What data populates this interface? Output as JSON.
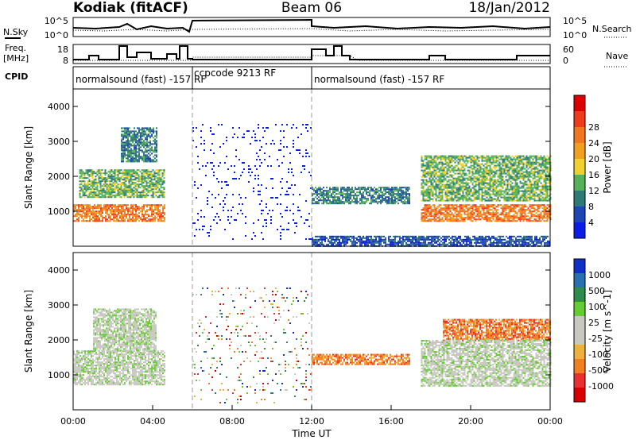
{
  "header": {
    "title": "Kodiak (fitACF)",
    "beam": "Beam 06",
    "date": "18/Jan/2012"
  },
  "panel_labels": {
    "nsky": "N.Sky",
    "freq_line1": "Freq.",
    "freq_line2": "[MHz]",
    "cpid": "CPID",
    "nsearch": "N.Search",
    "nave": "Nave"
  },
  "noise_axis": {
    "left_top": "10^5",
    "left_bottom": "10^0",
    "right_top": "10^5",
    "right_bottom": "10^0"
  },
  "freq_axis": {
    "left_top": "18",
    "left_bottom": "8",
    "right_top": "60",
    "right_bottom": "0"
  },
  "cpid_segments": [
    {
      "label": "normalsound (fast) -157 RF",
      "start": 0,
      "end": 6
    },
    {
      "label": "ccpcode 9213 RF",
      "start": 6,
      "end": 12
    },
    {
      "label": "normalsound (fast) -157 RF",
      "start": 12,
      "end": 24
    }
  ],
  "colors": {
    "power_scale": [
      "#0a1ee6",
      "#1e46b4",
      "#2e7a74",
      "#55b25a",
      "#f0d02e",
      "#f0a020",
      "#f07820",
      "#f03c1e",
      "#dc0000"
    ],
    "velocity_scale": [
      "#1030c8",
      "#2a70b0",
      "#2e8c4e",
      "#66cc33",
      "#c8c8c0",
      "#c8c8c0",
      "#f0b040",
      "#f08020",
      "#e83030",
      "#d80000"
    ]
  },
  "chart_data": [
    {
      "type": "heatmap",
      "name": "power",
      "xlabel": "",
      "ylabel": "Slant Range [km]",
      "xlim": [
        0,
        24
      ],
      "ylim": [
        0,
        4500
      ],
      "y_ticks": [
        "1000",
        "2000",
        "3000",
        "4000"
      ],
      "colorbar_label": "Power [dB]",
      "colorbar_ticks": [
        "4",
        "8",
        "12",
        "16",
        "20",
        "24",
        "28"
      ],
      "bands": [
        {
          "x": [
            0,
            4.6
          ],
          "y": [
            700,
            1200
          ],
          "level": 6
        },
        {
          "x": [
            0.3,
            4.6
          ],
          "y": [
            1400,
            2200
          ],
          "level": 3
        },
        {
          "x": [
            2.4,
            4.2
          ],
          "y": [
            2400,
            3400
          ],
          "level": 2
        },
        {
          "x": [
            6,
            12
          ],
          "y": [
            200,
            3500
          ],
          "level": 0
        },
        {
          "x": [
            12,
            16.9
          ],
          "y": [
            1200,
            1700
          ],
          "level": 2
        },
        {
          "x": [
            17.5,
            24
          ],
          "y": [
            700,
            1200
          ],
          "level": 6
        },
        {
          "x": [
            17.5,
            24
          ],
          "y": [
            1300,
            2600
          ],
          "level": 3
        },
        {
          "x": [
            12,
            24
          ],
          "y": [
            0,
            300
          ],
          "level": 1
        }
      ]
    },
    {
      "type": "heatmap",
      "name": "velocity",
      "xlabel": "Time UT",
      "ylabel": "Slant Range [km]",
      "xlim": [
        0,
        24
      ],
      "ylim": [
        0,
        4500
      ],
      "x_ticks": [
        "00:00",
        "04:00",
        "08:00",
        "12:00",
        "16:00",
        "20:00",
        "00:00"
      ],
      "y_ticks": [
        "1000",
        "2000",
        "3000",
        "4000"
      ],
      "colorbar_label": "Velocity [m s^-1]",
      "colorbar_ticks": [
        "1000",
        "500",
        "100",
        "25",
        "-25",
        "-100",
        "-500",
        "-1000"
      ],
      "bands": [
        {
          "x": [
            0,
            4.6
          ],
          "y": [
            700,
            1700
          ],
          "level": 4
        },
        {
          "x": [
            1,
            4.2
          ],
          "y": [
            1700,
            2900
          ],
          "level": 4
        },
        {
          "x": [
            6,
            12
          ],
          "y": [
            200,
            3500
          ],
          "level": 5
        },
        {
          "x": [
            12,
            16.9
          ],
          "y": [
            1300,
            1600
          ],
          "level": 7
        },
        {
          "x": [
            17.5,
            24
          ],
          "y": [
            700,
            1300
          ],
          "level": 4
        },
        {
          "x": [
            18.6,
            24
          ],
          "y": [
            2000,
            2600
          ],
          "level": 7
        },
        {
          "x": [
            17.5,
            24
          ],
          "y": [
            1300,
            2000
          ],
          "level": 4
        }
      ]
    }
  ]
}
